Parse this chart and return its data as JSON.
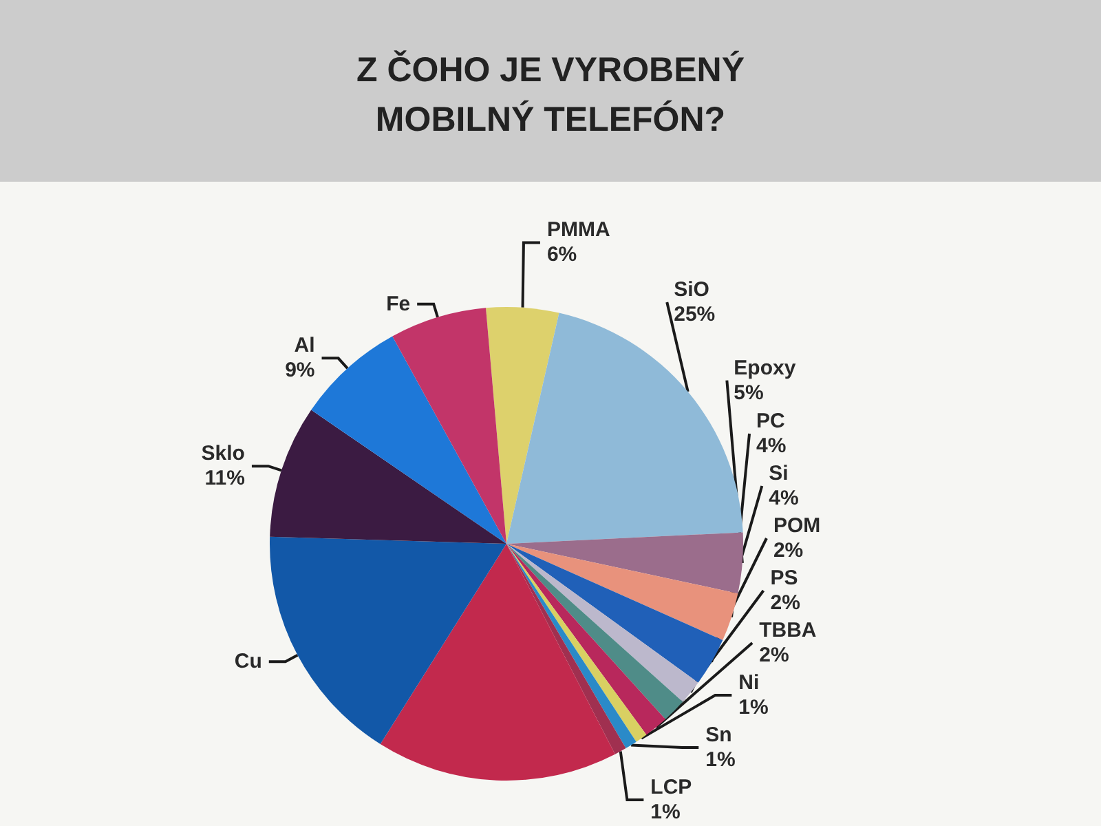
{
  "chart_data": {
    "type": "pie",
    "title": "Z ČOHO JE VYROBENÝ\nMOBILNÝ TELEFÓN?",
    "categories": [
      "PMMA",
      "SiO",
      "Epoxy",
      "PC",
      "Si",
      "POM",
      "PS",
      "TBBA",
      "Ni",
      "Sn",
      "LCP",
      null,
      "Cu",
      "Sklo",
      "Al",
      "Fe"
    ],
    "values": [
      6,
      25,
      5,
      4,
      4,
      2,
      2,
      2,
      1,
      1,
      1,
      20,
      20,
      11,
      9,
      8
    ],
    "value_labels": [
      "6%",
      "25%",
      "5%",
      "4%",
      "4%",
      "2%",
      "2%",
      "2%",
      "1%",
      "1%",
      "1%",
      null,
      null,
      "11%",
      "9%",
      null
    ],
    "colors": [
      "#ddd16c",
      "#8fbad8",
      "#9b6d8c",
      "#e8927c",
      "#2060b8",
      "#bcb8cc",
      "#4f8c88",
      "#b8285c",
      "#d9d062",
      "#2a8ac8",
      "#a03050",
      "#c2294d",
      "#1258a8",
      "#3b1b42",
      "#1e78d8",
      "#c23569"
    ]
  }
}
